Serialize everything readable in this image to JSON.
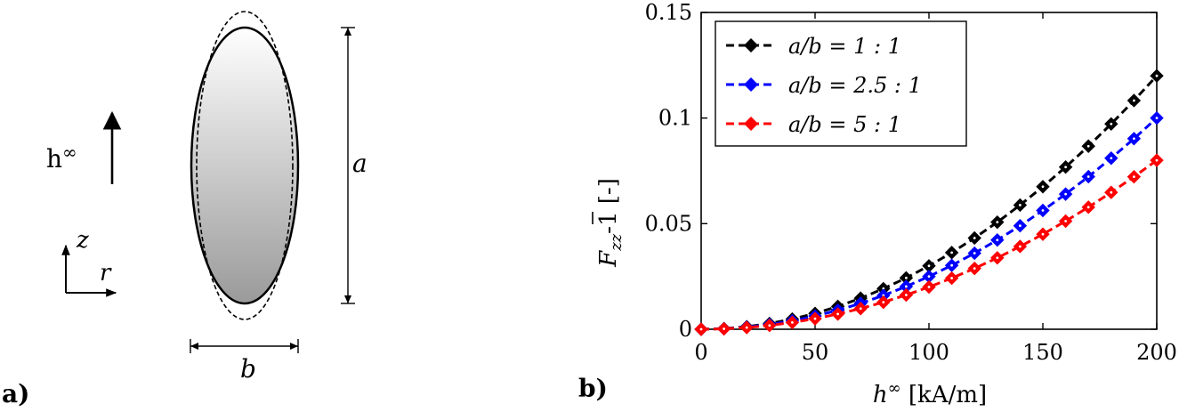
{
  "panel_a": {
    "label": "a)",
    "field_symbol": "h",
    "field_superscript": "∞",
    "axis_z": "z",
    "axis_r": "r",
    "dim_a": "a",
    "dim_b": "b"
  },
  "panel_b": {
    "label": "b)"
  },
  "chart_data": {
    "type": "line",
    "xlabel_main": "h",
    "xlabel_sup": "∞",
    "xlabel_unit": " [kA/m]",
    "ylabel_F": "F",
    "ylabel_sub": "zz",
    "ylabel_rest": "-1 [-]",
    "xlim": [
      0,
      200
    ],
    "ylim": [
      0,
      0.15
    ],
    "xticks": [
      0,
      50,
      100,
      150,
      200
    ],
    "xtick_labels": [
      "0",
      "50",
      "100",
      "150",
      "200"
    ],
    "yticks": [
      0,
      0.05,
      0.1,
      0.15
    ],
    "ytick_labels": [
      "0",
      "0.05",
      "0.1",
      "0.15"
    ],
    "grid": false,
    "legend_position": "top-left",
    "x": [
      0,
      10,
      20,
      30,
      40,
      50,
      60,
      70,
      80,
      90,
      100,
      110,
      120,
      130,
      140,
      150,
      160,
      170,
      180,
      190,
      200
    ],
    "series": [
      {
        "name": "a/b = 1 : 1",
        "color": "#000000",
        "values": [
          0,
          0.0003,
          0.0012,
          0.0027,
          0.0048,
          0.0075,
          0.0108,
          0.0147,
          0.0192,
          0.0243,
          0.03,
          0.0363,
          0.0432,
          0.0507,
          0.0588,
          0.0675,
          0.0768,
          0.0867,
          0.0972,
          0.1083,
          0.12
        ]
      },
      {
        "name": "a/b = 2.5 : 1",
        "color": "#0000ff",
        "values": [
          0,
          0.00025,
          0.001,
          0.00225,
          0.004,
          0.00625,
          0.009,
          0.01225,
          0.016,
          0.02025,
          0.025,
          0.03025,
          0.036,
          0.04225,
          0.049,
          0.05625,
          0.064,
          0.07225,
          0.081,
          0.09025,
          0.1
        ]
      },
      {
        "name": "a/b = 5 : 1",
        "color": "#ff0000",
        "values": [
          0,
          0.0002,
          0.0008,
          0.0018,
          0.0032,
          0.005,
          0.0072,
          0.0098,
          0.0128,
          0.0162,
          0.02,
          0.0242,
          0.0288,
          0.0338,
          0.0392,
          0.045,
          0.0512,
          0.0578,
          0.0648,
          0.0722,
          0.08
        ]
      }
    ]
  }
}
